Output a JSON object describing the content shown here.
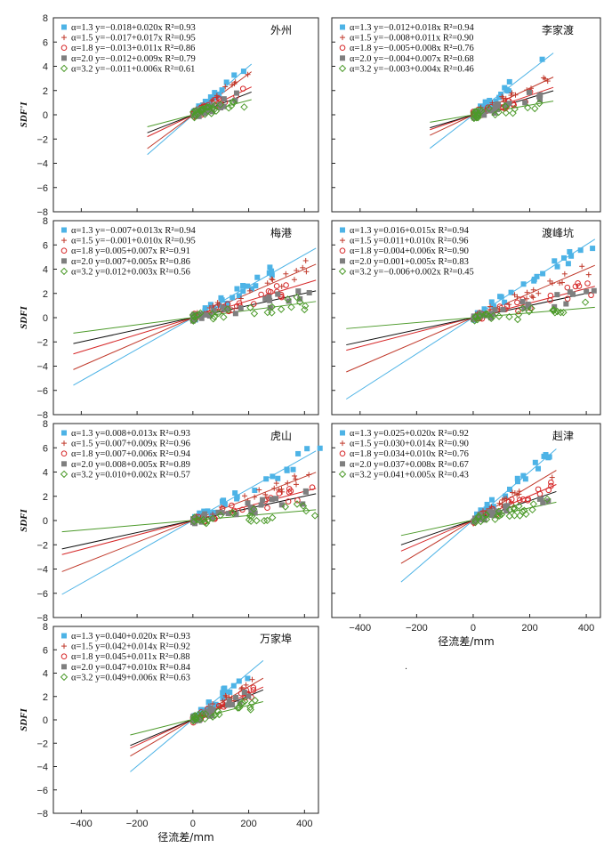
{
  "ylabel": "SDFI",
  "xlabel": "径流差/mm",
  "stray_mark": ".",
  "colors": {
    "a13": "#4db3e6",
    "a15": "#c0392b",
    "a18": "#d62728",
    "a20": "#7f7f7f",
    "a32": "#4c9a2a",
    "black": "#111111"
  },
  "chart_data": [
    {
      "type": "scatter",
      "title": "外州",
      "xlim": [
        -500,
        450
      ],
      "ylim": [
        -8,
        8
      ],
      "yticks": [
        "8",
        "6",
        "4",
        "2",
        "0",
        "−2",
        "−4",
        "−6",
        "−8"
      ],
      "xticks": [],
      "xlabel": "",
      "ylabel": "SDF'I",
      "legend": [
        "α=1.3 y=−0.018+0.020x R²=0.93",
        "α=1.5 y=−0.017+0.017x R²=0.95",
        "α=1.8 y=−0.013+0.011x R²=0.86",
        "α=2.0 y=−0.012+0.009x R²=0.79",
        "α=3.2 y=−0.011+0.006x R²=0.61"
      ],
      "fits": [
        {
          "a": -0.018,
          "b": 0.02
        },
        {
          "a": -0.017,
          "b": 0.017
        },
        {
          "a": -0.013,
          "b": 0.011
        },
        {
          "a": -0.012,
          "b": 0.009
        },
        {
          "a": -0.011,
          "b": 0.006
        }
      ],
      "xrange": [
        -160,
        200
      ]
    },
    {
      "type": "scatter",
      "title": "李家渡",
      "xlim": [
        -500,
        450
      ],
      "ylim": [
        -8,
        8
      ],
      "yticks": [],
      "xticks": [],
      "xlabel": "",
      "ylabel": "",
      "legend": [
        "α=1.3 y=−0.012+0.018x R²=0.94",
        "α=1.5 y=−0.008+0.011x R²=0.90",
        "α=1.8 y=−0.005+0.008x R²=0.76",
        "α=2.0 y=−0.004+0.007x R²=0.68",
        "α=3.2 y=−0.003+0.004x R²=0.46"
      ],
      "fits": [
        {
          "a": -0.012,
          "b": 0.018
        },
        {
          "a": -0.008,
          "b": 0.011
        },
        {
          "a": -0.005,
          "b": 0.008
        },
        {
          "a": -0.004,
          "b": 0.007
        },
        {
          "a": -0.003,
          "b": 0.004
        }
      ],
      "xrange": [
        -150,
        270
      ]
    },
    {
      "type": "scatter",
      "title": "梅港",
      "xlim": [
        -500,
        450
      ],
      "ylim": [
        -8,
        8
      ],
      "yticks": [
        "8",
        "6",
        "4",
        "2",
        "0",
        "−2",
        "−4",
        "−6",
        "−8"
      ],
      "xticks": [],
      "xlabel": "",
      "ylabel": "SDFI",
      "legend": [
        "α=1.3 y=−0.007+0.013x R²=0.94",
        "α=1.5 y=−0.001+0.010x R²=0.95",
        "α=1.8 y=0.005+0.007x R²=0.91",
        "α=2.0 y=0.007+0.005x R²=0.86",
        "α=3.2 y=0.012+0.003x R²=0.56"
      ],
      "fits": [
        {
          "a": -0.007,
          "b": 0.013
        },
        {
          "a": -0.001,
          "b": 0.01
        },
        {
          "a": 0.005,
          "b": 0.007
        },
        {
          "a": 0.007,
          "b": 0.005
        },
        {
          "a": 0.012,
          "b": 0.003
        }
      ],
      "xrange": [
        -420,
        420
      ]
    },
    {
      "type": "scatter",
      "title": "渡峰坑",
      "xlim": [
        -500,
        450
      ],
      "ylim": [
        -8,
        8
      ],
      "yticks": [],
      "xticks": [],
      "xlabel": "",
      "ylabel": "",
      "legend": [
        "α=1.3 y=0.016+0.015x R²=0.94",
        "α=1.5 y=0.011+0.010x R²=0.96",
        "α=1.8 y=0.004+0.006x R²=0.90",
        "α=2.0 y=0.001+0.005x R²=0.83",
        "α=3.2 y=−0.006+0.002x R²=0.45"
      ],
      "fits": [
        {
          "a": 0.016,
          "b": 0.015
        },
        {
          "a": 0.011,
          "b": 0.01
        },
        {
          "a": 0.004,
          "b": 0.006
        },
        {
          "a": 0.001,
          "b": 0.005
        },
        {
          "a": -0.006,
          "b": 0.002
        }
      ],
      "xrange": [
        -440,
        410
      ]
    },
    {
      "type": "scatter",
      "title": "虎山",
      "xlim": [
        -500,
        450
      ],
      "ylim": [
        -8,
        8
      ],
      "yticks": [
        "8",
        "6",
        "4",
        "2",
        "0",
        "−2",
        "−4",
        "−6",
        "−8"
      ],
      "xticks": [],
      "xlabel": "",
      "ylabel": "SDFI",
      "legend": [
        "α=1.3 y=0.008+0.013x R²=0.93",
        "α=1.5 y=0.007+0.009x R²=0.96",
        "α=1.8 y=0.007+0.006x R²=0.94",
        "α=2.0 y=0.008+0.005x R²=0.89",
        "α=3.2 y=0.010+0.002x R²=0.57"
      ],
      "fits": [
        {
          "a": 0.008,
          "b": 0.013
        },
        {
          "a": 0.007,
          "b": 0.009
        },
        {
          "a": 0.007,
          "b": 0.006
        },
        {
          "a": 0.008,
          "b": 0.005
        },
        {
          "a": 0.01,
          "b": 0.002
        }
      ],
      "xrange": [
        -460,
        420
      ]
    },
    {
      "type": "scatter",
      "title": "赳津",
      "xlim": [
        -500,
        450
      ],
      "ylim": [
        -8,
        8
      ],
      "yticks": [],
      "xticks": [
        "−400",
        "−200",
        "0",
        "200",
        "400"
      ],
      "xlabel": "径流差/mm",
      "ylabel": "",
      "legend": [
        "α=1.3 y=0.025+0.020x R²=0.92",
        "α=1.5 y=0.030+0.014x R²=0.90",
        "α=1.8 y=0.034+0.010x R²=0.76",
        "α=2.0 y=0.037+0.008x R²=0.67",
        "α=3.2 y=0.041+0.005x R²=0.43"
      ],
      "fits": [
        {
          "a": 0.025,
          "b": 0.02
        },
        {
          "a": 0.03,
          "b": 0.014
        },
        {
          "a": 0.034,
          "b": 0.01
        },
        {
          "a": 0.037,
          "b": 0.008
        },
        {
          "a": 0.041,
          "b": 0.005
        }
      ],
      "xrange": [
        -250,
        280
      ]
    },
    {
      "type": "scatter",
      "title": "万家埠",
      "xlim": [
        -500,
        450
      ],
      "ylim": [
        -8,
        8
      ],
      "yticks": [
        "8",
        "6",
        "4",
        "2",
        "0",
        "−2",
        "−4",
        "−6",
        "−8"
      ],
      "xticks": [
        "−400",
        "−200",
        "0",
        "200",
        "400"
      ],
      "xlabel": "径流差/mm",
      "ylabel": "SDFI",
      "legend": [
        "α=1.3 y=0.040+0.020x R²=0.93",
        "α=1.5 y=0.042+0.014x R²=0.92",
        "α=1.8 y=0.045+0.011x R²=0.88",
        "α=2.0 y=0.047+0.010x R²=0.84",
        "α=3.2 y=0.049+0.006x R²=0.63"
      ],
      "fits": [
        {
          "a": 0.04,
          "b": 0.02
        },
        {
          "a": 0.042,
          "b": 0.014
        },
        {
          "a": 0.045,
          "b": 0.011
        },
        {
          "a": 0.047,
          "b": 0.01
        },
        {
          "a": 0.049,
          "b": 0.006
        }
      ],
      "xrange": [
        -220,
        240
      ]
    }
  ]
}
